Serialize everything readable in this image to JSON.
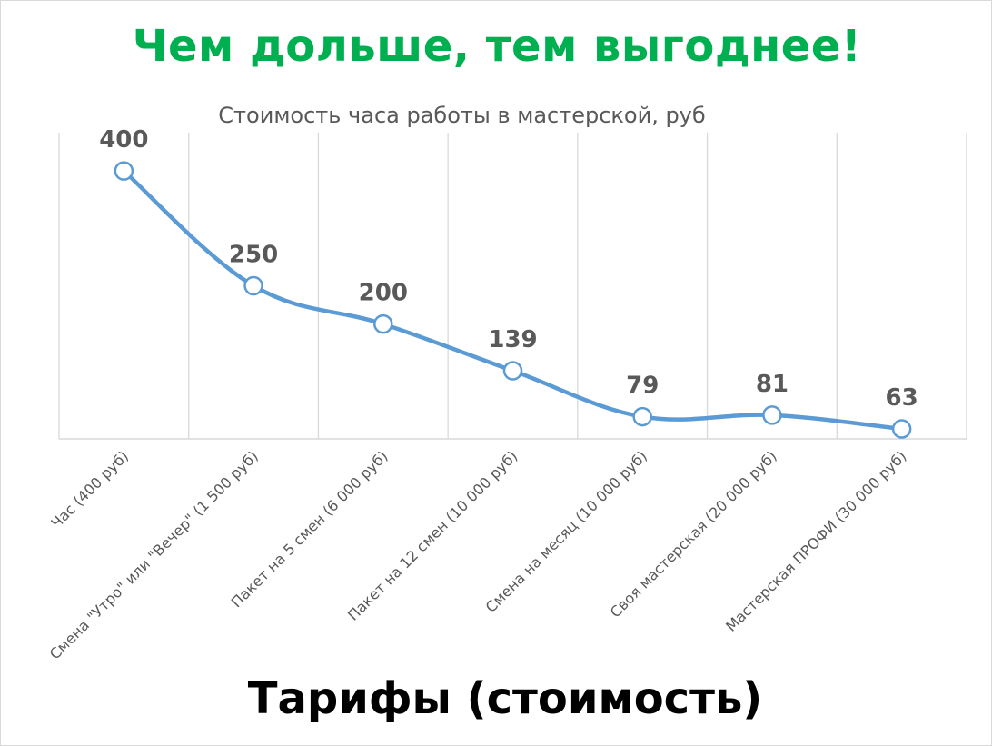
{
  "headline": "Чем дольше, тем выгоднее!",
  "colors": {
    "headline": "#00b050",
    "series": "#5b9bd5",
    "grid": "#d9d9d9",
    "text": "#595959"
  },
  "chart_data": {
    "type": "line",
    "title": "Стоимость часа работы в мастерской, руб",
    "xlabel": "Тарифы (стоимость)",
    "ylabel": "",
    "categories": [
      "Час (400 руб)",
      "Смена \"Утро\" или \"Вечер\" (1 500 руб)",
      "Пакет на 5 смен (6 000 руб)",
      "Пакет на 12 смен (10 000 руб)",
      "Смена на месяц (10 000 руб)",
      "Своя мастерская (20 000 руб)",
      "Мастерская ПРОФИ (30 000 руб)"
    ],
    "series": [
      {
        "values": [
          400,
          250,
          200,
          139,
          79,
          81,
          63
        ]
      }
    ],
    "data_labels": true,
    "smooth": true,
    "ylim": [
      50,
      450
    ],
    "grid": "vertical",
    "legend": "none"
  }
}
